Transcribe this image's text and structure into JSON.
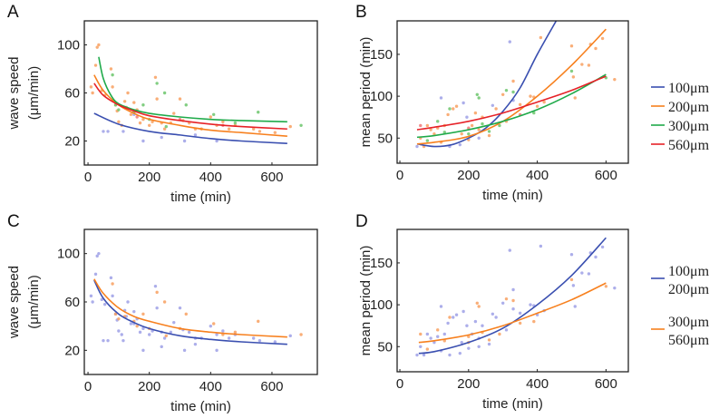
{
  "colors": {
    "100um": "#3a4fb0",
    "200um": "#f7801e",
    "300um": "#1faa4a",
    "560um": "#e62228",
    "blue_pts": "#9da0e6",
    "orange_pts": "#f8a060",
    "green_pts": "#6cc66c",
    "red_pts": "#f07878"
  },
  "chart_data": [
    {
      "panel": "A",
      "type": "scatter+line",
      "xlabel": "time (min)",
      "ylabel": [
        "wave speed",
        "(μm/min)"
      ],
      "xlim": [
        -12,
        748
      ],
      "ylim": [
        0,
        120
      ],
      "xticks": [
        0,
        200,
        400,
        600
      ],
      "yticks": [
        20,
        60,
        100
      ],
      "series": [
        {
          "key": "100um",
          "points": [
            [
              50,
              28
            ],
            [
              65,
              28
            ],
            [
              115,
              28
            ],
            [
              150,
              42
            ],
            [
              180,
              20
            ],
            [
              240,
              23
            ],
            [
              315,
              20
            ],
            [
              350,
              25
            ],
            [
              420,
              20
            ]
          ],
          "fit": [
            [
              20,
              43
            ],
            [
              100,
              34
            ],
            [
              200,
              28
            ],
            [
              300,
              25
            ],
            [
              400,
              22
            ],
            [
              500,
              20
            ],
            [
              650,
              18
            ]
          ]
        },
        {
          "key": "200um",
          "points": [
            [
              10,
              65
            ],
            [
              15,
              60
            ],
            [
              25,
              83
            ],
            [
              30,
              98
            ],
            [
              35,
              100
            ],
            [
              45,
              62
            ],
            [
              55,
              58
            ],
            [
              75,
              80
            ],
            [
              80,
              65
            ],
            [
              90,
              50
            ],
            [
              95,
              45
            ],
            [
              100,
              36
            ],
            [
              110,
              33
            ],
            [
              120,
              53
            ],
            [
              125,
              48
            ],
            [
              130,
              60
            ],
            [
              140,
              42
            ],
            [
              150,
              52
            ],
            [
              160,
              46
            ],
            [
              170,
              35
            ],
            [
              180,
              38
            ],
            [
              200,
              33
            ],
            [
              210,
              36
            ],
            [
              220,
              73
            ],
            [
              225,
              55
            ],
            [
              240,
              35
            ],
            [
              250,
              30
            ],
            [
              270,
              35
            ],
            [
              280,
              43
            ],
            [
              300,
              55
            ],
            [
              310,
              37
            ],
            [
              330,
              35
            ],
            [
              350,
              30
            ],
            [
              370,
              30
            ],
            [
              400,
              40
            ],
            [
              420,
              33
            ],
            [
              440,
              36
            ],
            [
              460,
              30
            ],
            [
              480,
              33
            ],
            [
              540,
              30
            ],
            [
              560,
              28
            ],
            [
              610,
              27
            ],
            [
              660,
              32
            ]
          ],
          "fit": [
            [
              20,
              75
            ],
            [
              50,
              62
            ],
            [
              100,
              50
            ],
            [
              150,
              43
            ],
            [
              200,
              38
            ],
            [
              300,
              33
            ],
            [
              400,
              29
            ],
            [
              500,
              27
            ],
            [
              650,
              24
            ]
          ]
        },
        {
          "key": "300um",
          "points": [
            [
              80,
              75
            ],
            [
              90,
              50
            ],
            [
              100,
              46
            ],
            [
              150,
              44
            ],
            [
              180,
              50
            ],
            [
              200,
              38
            ],
            [
              225,
              68
            ],
            [
              250,
              60
            ],
            [
              255,
              32
            ],
            [
              320,
              50
            ],
            [
              410,
              42
            ],
            [
              480,
              35
            ],
            [
              555,
              44
            ],
            [
              695,
              33
            ]
          ],
          "fit": [
            [
              35,
              90
            ],
            [
              50,
              72
            ],
            [
              75,
              58
            ],
            [
              100,
              51
            ],
            [
              150,
              46
            ],
            [
              200,
              43
            ],
            [
              300,
              40
            ],
            [
              400,
              38
            ],
            [
              500,
              37
            ],
            [
              650,
              36
            ]
          ]
        },
        {
          "key": "560um",
          "points": [
            [
              120,
              48
            ],
            [
              160,
              40
            ],
            [
              300,
              38
            ],
            [
              440,
              33
            ]
          ],
          "fit": [
            [
              20,
              68
            ],
            [
              50,
              58
            ],
            [
              100,
              50
            ],
            [
              150,
              45
            ],
            [
              200,
              41
            ],
            [
              300,
              37
            ],
            [
              400,
              34
            ],
            [
              500,
              32
            ],
            [
              650,
              30
            ]
          ]
        }
      ]
    },
    {
      "panel": "B",
      "type": "scatter+line",
      "xlabel": "time (min)",
      "ylabel": [
        "mean period (min)"
      ],
      "xlim": [
        -8,
        665
      ],
      "ylim": [
        20,
        190
      ],
      "xticks": [
        0,
        200,
        400,
        600
      ],
      "yticks": [
        50,
        100,
        150
      ],
      "legend": {
        "position": "right",
        "entries": [
          {
            "key": "100um",
            "label": "100μm"
          },
          {
            "key": "200um",
            "label": "200μm"
          },
          {
            "key": "300um",
            "label": "300μm"
          },
          {
            "key": "560um",
            "label": "560μm"
          }
        ]
      },
      "series": [
        {
          "key": "100um",
          "points": [
            [
              50,
              40
            ],
            [
              120,
              98
            ],
            [
              145,
              40
            ],
            [
              175,
              42
            ],
            [
              185,
              92
            ],
            [
              195,
              75
            ],
            [
              230,
              50
            ],
            [
              270,
              89
            ],
            [
              320,
              165
            ],
            [
              330,
              95
            ]
          ],
          "fit": [
            [
              50,
              43
            ],
            [
              100,
              40
            ],
            [
              150,
              42
            ],
            [
              200,
              50
            ],
            [
              250,
              62
            ],
            [
              300,
              82
            ],
            [
              350,
              110
            ],
            [
              400,
              150
            ],
            [
              455,
              190
            ]
          ]
        },
        {
          "key": "200um",
          "points": [
            [
              60,
              50
            ],
            [
              70,
              40
            ],
            [
              80,
              65
            ],
            [
              90,
              60
            ],
            [
              100,
              55
            ],
            [
              110,
              62
            ],
            [
              120,
              45
            ],
            [
              130,
              65
            ],
            [
              140,
              78
            ],
            [
              155,
              85
            ],
            [
              165,
              88
            ],
            [
              180,
              55
            ],
            [
              200,
              48
            ],
            [
              210,
              65
            ],
            [
              220,
              80
            ],
            [
              230,
              60
            ],
            [
              240,
              75
            ],
            [
              260,
              53
            ],
            [
              280,
              85
            ],
            [
              300,
              102
            ],
            [
              310,
              70
            ],
            [
              330,
              118
            ],
            [
              350,
              90
            ],
            [
              380,
              100
            ],
            [
              390,
              99
            ],
            [
              400,
              88
            ],
            [
              410,
              170
            ],
            [
              420,
              93
            ],
            [
              500,
              160
            ],
            [
              505,
              123
            ],
            [
              510,
              98
            ],
            [
              530,
              138
            ],
            [
              550,
              137
            ],
            [
              555,
              162
            ],
            [
              570,
              157
            ],
            [
              590,
              169
            ],
            [
              625,
              120
            ]
          ],
          "fit": [
            [
              50,
              43
            ],
            [
              100,
              45
            ],
            [
              200,
              52
            ],
            [
              300,
              70
            ],
            [
              400,
              100
            ],
            [
              500,
              137
            ],
            [
              600,
              180
            ]
          ]
        },
        {
          "key": "300um",
          "points": [
            [
              80,
              47
            ],
            [
              110,
              70
            ],
            [
              130,
              57
            ],
            [
              145,
              85
            ],
            [
              200,
              55
            ],
            [
              225,
              102
            ],
            [
              230,
              98
            ],
            [
              240,
              67
            ],
            [
              260,
              58
            ],
            [
              290,
              65
            ],
            [
              310,
              107
            ],
            [
              330,
              105
            ],
            [
              390,
              80
            ],
            [
              500,
              130
            ],
            [
              600,
              122
            ]
          ],
          "fit": [
            [
              50,
              51
            ],
            [
              100,
              53
            ],
            [
              200,
              60
            ],
            [
              300,
              70
            ],
            [
              400,
              84
            ],
            [
              500,
              103
            ],
            [
              600,
              126
            ]
          ]
        },
        {
          "key": "560um",
          "points": [
            [
              60,
              65
            ],
            [
              200,
              62
            ],
            [
              350,
              78
            ]
          ],
          "fit": [
            [
              50,
              60
            ],
            [
              100,
              63
            ],
            [
              200,
              70
            ],
            [
              300,
              80
            ],
            [
              400,
              93
            ],
            [
              500,
              107
            ],
            [
              600,
              124
            ]
          ]
        }
      ]
    },
    {
      "panel": "C",
      "type": "scatter+line",
      "xlabel": "time (min)",
      "ylabel": [
        "wave speed",
        "(μm/min)"
      ],
      "xlim": [
        -12,
        748
      ],
      "ylim": [
        0,
        120
      ],
      "xticks": [
        0,
        200,
        400,
        600
      ],
      "yticks": [
        20,
        60,
        100
      ],
      "series": [
        {
          "key": "100um",
          "point_color": "blue_pts",
          "combines": [
            "100um",
            "200um"
          ],
          "fit": [
            [
              20,
              78
            ],
            [
              50,
              63
            ],
            [
              100,
              50
            ],
            [
              150,
              43
            ],
            [
              200,
              38
            ],
            [
              300,
              32
            ],
            [
              400,
              29
            ],
            [
              500,
              27
            ],
            [
              650,
              25
            ]
          ]
        },
        {
          "key": "200um",
          "point_color": "orange_pts",
          "combines": [
            "300um",
            "560um"
          ],
          "fit": [
            [
              20,
              79
            ],
            [
              50,
              67
            ],
            [
              100,
              55
            ],
            [
              150,
              48
            ],
            [
              200,
              44
            ],
            [
              300,
              38
            ],
            [
              400,
              35
            ],
            [
              500,
              33
            ],
            [
              650,
              31
            ]
          ]
        }
      ]
    },
    {
      "panel": "D",
      "type": "scatter+line",
      "xlabel": "time (min)",
      "ylabel": [
        "mean period (min)"
      ],
      "xlim": [
        -8,
        665
      ],
      "ylim": [
        20,
        190
      ],
      "xticks": [
        0,
        200,
        400,
        600
      ],
      "yticks": [
        50,
        100,
        150
      ],
      "legend": {
        "position": "right",
        "entries": [
          {
            "key": "100um",
            "label": [
              "100μm",
              "200μm"
            ]
          },
          {
            "key": "200um",
            "label": [
              "300μm",
              "560μm"
            ]
          }
        ]
      },
      "series": [
        {
          "key": "100um",
          "point_color": "blue_pts",
          "combines": [
            "100um",
            "200um"
          ],
          "fit": [
            [
              55,
              42
            ],
            [
              100,
              44
            ],
            [
              200,
              55
            ],
            [
              300,
              72
            ],
            [
              400,
              100
            ],
            [
              500,
              135
            ],
            [
              600,
              180
            ]
          ]
        },
        {
          "key": "200um",
          "point_color": "orange_pts",
          "combines": [
            "300um",
            "560um"
          ],
          "fit": [
            [
              55,
              55
            ],
            [
              100,
              57
            ],
            [
              200,
              64
            ],
            [
              300,
              75
            ],
            [
              400,
              90
            ],
            [
              500,
              106
            ],
            [
              600,
              126
            ]
          ]
        }
      ]
    }
  ]
}
